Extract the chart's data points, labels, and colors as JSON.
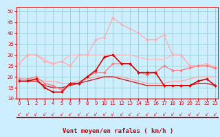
{
  "x": [
    0,
    1,
    2,
    3,
    4,
    5,
    6,
    7,
    8,
    9,
    10,
    11,
    12,
    13,
    14,
    15,
    16,
    17,
    18,
    19,
    20,
    21,
    22,
    23
  ],
  "series": [
    {
      "y": [
        26,
        30,
        30,
        27,
        26,
        27,
        25,
        30,
        30,
        37,
        38,
        47,
        44,
        42,
        40,
        37,
        37,
        39,
        30,
        30,
        25,
        25,
        26,
        24
      ],
      "color": "#ffaaaa",
      "lw": 0.9,
      "marker": "D",
      "ms": 2.0
    },
    {
      "y": [
        26,
        30,
        30,
        28,
        26,
        27,
        30,
        30,
        30,
        30,
        30,
        30,
        30,
        30,
        29,
        28,
        28,
        28,
        30,
        30,
        25,
        25,
        25,
        25
      ],
      "color": "#ffbbbb",
      "lw": 1.0,
      "marker": null,
      "ms": 0
    },
    {
      "y": [
        19,
        19,
        20,
        17,
        16,
        14,
        17,
        17,
        20,
        22,
        22,
        26,
        26,
        26,
        22,
        21,
        22,
        25,
        23,
        23,
        24,
        25,
        25,
        24
      ],
      "color": "#ff7777",
      "lw": 0.9,
      "marker": "D",
      "ms": 2.0
    },
    {
      "y": [
        19,
        19,
        19,
        18,
        18,
        17,
        17,
        18,
        19,
        20,
        20,
        20,
        20,
        19,
        18,
        17,
        17,
        17,
        18,
        18,
        19,
        20,
        20,
        20
      ],
      "color": "#ffaaaa",
      "lw": 1.0,
      "marker": null,
      "ms": 0
    },
    {
      "y": [
        18,
        18,
        19,
        15,
        13,
        13,
        17,
        17,
        20,
        23,
        29,
        30,
        26,
        26,
        22,
        22,
        22,
        16,
        16,
        16,
        16,
        18,
        19,
        16
      ],
      "color": "#dd0000",
      "lw": 1.2,
      "marker": "D",
      "ms": 2.0
    },
    {
      "y": [
        18,
        18,
        18,
        16,
        15,
        15,
        16,
        17,
        18,
        19,
        20,
        20,
        19,
        18,
        17,
        16,
        16,
        16,
        16,
        16,
        16,
        17,
        17,
        16
      ],
      "color": "#cc2222",
      "lw": 1.0,
      "marker": null,
      "ms": 0
    }
  ],
  "xlabel": "Vent moyen/en rafales ( km/h )",
  "ylim": [
    10,
    52
  ],
  "xlim": [
    -0.3,
    23.3
  ],
  "yticks": [
    10,
    15,
    20,
    25,
    30,
    35,
    40,
    45,
    50
  ],
  "xticks": [
    0,
    1,
    2,
    3,
    4,
    5,
    6,
    7,
    8,
    9,
    10,
    11,
    12,
    13,
    14,
    15,
    16,
    17,
    18,
    19,
    20,
    21,
    22,
    23
  ],
  "bg_color": "#cceeff",
  "grid_color": "#99cccc",
  "arrow_color": "#cc3333",
  "axis_color": "#cc0000",
  "xlabel_color": "#cc0000",
  "tick_color": "#cc0000"
}
